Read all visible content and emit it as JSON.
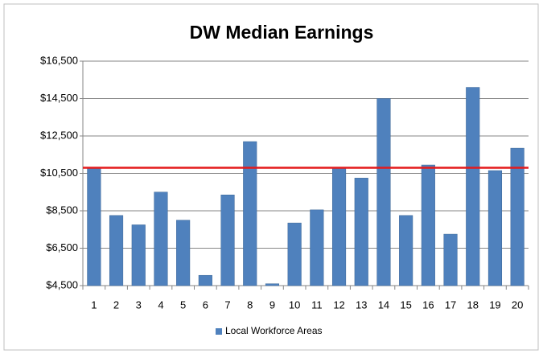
{
  "chart_data": {
    "type": "bar",
    "title": "DW Median Earnings",
    "categories": [
      "1",
      "2",
      "3",
      "4",
      "5",
      "6",
      "7",
      "8",
      "9",
      "10",
      "11",
      "12",
      "13",
      "14",
      "15",
      "16",
      "17",
      "18",
      "19",
      "20"
    ],
    "series": [
      {
        "name": "Local Workforce Areas",
        "color": "#4f81bd",
        "values": [
          10800,
          8250,
          7750,
          9500,
          8000,
          5050,
          9350,
          12200,
          4600,
          7850,
          8550,
          10800,
          10250,
          14500,
          8250,
          10950,
          7250,
          15100,
          10650,
          11850
        ]
      }
    ],
    "reference_line": {
      "value": 10800,
      "color": "#e41a1c"
    },
    "ylim": [
      4500,
      16500
    ],
    "yticks": [
      {
        "value": 4500,
        "label": "$4,500"
      },
      {
        "value": 6500,
        "label": "$6,500"
      },
      {
        "value": 8500,
        "label": "$8,500"
      },
      {
        "value": 10500,
        "label": "$10,500"
      },
      {
        "value": 12500,
        "label": "$12,500"
      },
      {
        "value": 14500,
        "label": "$14,500"
      },
      {
        "value": 16500,
        "label": "$16,500"
      }
    ],
    "grid": true,
    "legend": "bottom"
  }
}
